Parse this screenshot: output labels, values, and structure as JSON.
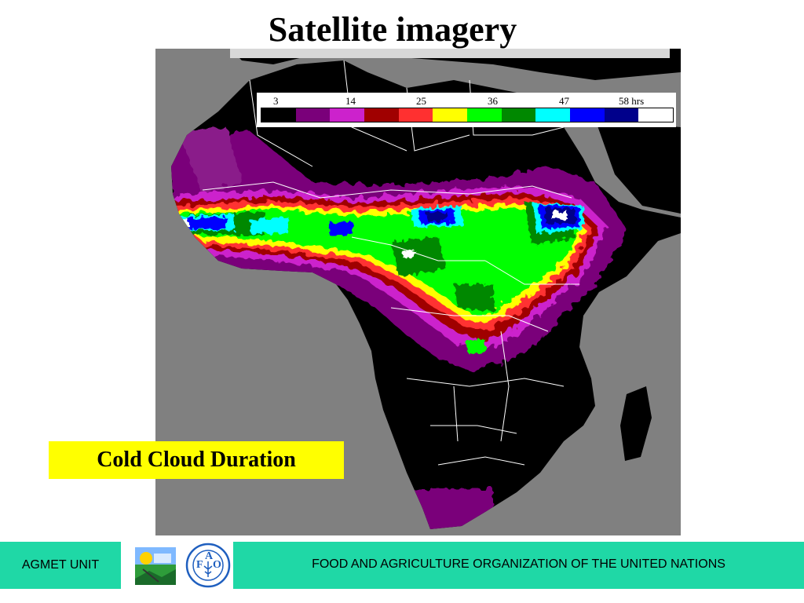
{
  "title": "Satellite imagery",
  "legend": {
    "ticks": [
      "3",
      "14",
      "25",
      "36",
      "47",
      "58 hrs"
    ],
    "colors": [
      "#000000",
      "#7a007a",
      "#cc22cc",
      "#a00000",
      "#ff3030",
      "#ffff00",
      "#00ff00",
      "#008800",
      "#00ffff",
      "#0000ff",
      "#00008b",
      "#ffffff"
    ]
  },
  "caption": "Cold Cloud Duration",
  "footer": {
    "unit_label": "AGMET UNIT",
    "org_name": "FOOD AND AGRICULTURE ORGANIZATION OF THE UNITED NATIONS",
    "logo_letters": [
      "F",
      "A",
      "O"
    ],
    "logo_motto": "FIAT PANIS"
  },
  "colors": {
    "footer_bg": "#1fd8a6",
    "caption_bg": "#ffff00",
    "ocean": "#808080",
    "land": "#000000"
  }
}
